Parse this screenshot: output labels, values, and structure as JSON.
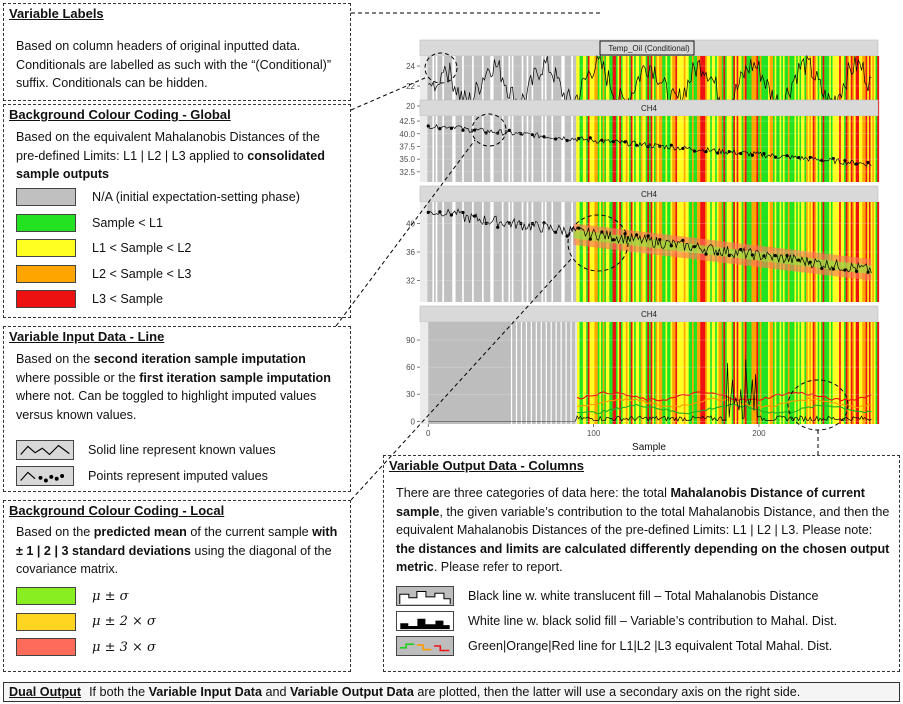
{
  "variable_labels": {
    "title": "Variable Labels",
    "text": "Based on column headers of original inputted data. Conditionals are labelled as such with the “(Conditional)” suffix. Conditionals can be hidden."
  },
  "bg_global": {
    "title": "Background Colour Coding - Global",
    "intro": "Based on the equivalent Mahalanobis Distances of the pre-defined Limits: L1 | L2 | L3 applied to",
    "intro_bold": "consolidated sample outputs",
    "items": [
      {
        "label": "N/A (initial expectation-setting phase)",
        "color": "#c0c0c0"
      },
      {
        "label": "Sample < L1",
        "color": "#22e222"
      },
      {
        "label": "L1 < Sample < L2",
        "color": "#ffff22"
      },
      {
        "label": "L2 < Sample < L3",
        "color": "#ffa500"
      },
      {
        "label": "L3 < Sample",
        "color": "#ee1111"
      }
    ]
  },
  "input_line": {
    "title": "Variable Input Data - Line",
    "t1": "Based on the ",
    "b1": "second iteration sample imputation",
    "t2": " where possible or the ",
    "b2": "first iteration sample imputation",
    "t3": " where not. Can be toggled to highlight imputed values versus known values.",
    "items": [
      {
        "label": "Solid line represent known values",
        "icon": "solid-line-icon"
      },
      {
        "label": "Points represent imputed values",
        "icon": "points-line-icon"
      }
    ]
  },
  "bg_local": {
    "title": "Background Colour Coding - Local",
    "t1": "Based on the ",
    "b1": "predicted mean",
    "t2": " of the current sample ",
    "b2": "with ± 1 | 2 | 3 standard deviations",
    "t3": " using the diagonal of the covariance matrix.",
    "items": [
      {
        "label": "μ ± σ",
        "color": "#88ee22"
      },
      {
        "label": "μ ± 2 × σ",
        "color": "#ffd522"
      },
      {
        "label": "μ ± 3 × σ",
        "color": "#ff6b5a"
      }
    ]
  },
  "output_cols": {
    "title": "Variable Output Data - Columns",
    "t1": "There are three categories of data here: the total ",
    "b1": "Mahalanobis Distance of current sample",
    "t2": ", the given variable’s contribution to the total Mahalanobis Distance, and then the equivalent Mahalanobis Distances of the pre-defined Limits: L1 | L2 | L3. Please note: ",
    "b2": "the distances and limits are calculated differently depending on the chosen output metric",
    "t3": ". Please refer to report.",
    "items": [
      {
        "label": "Black line w. white translucent fill – Total Mahalanobis Distance",
        "icon": "white-fill-columns-icon"
      },
      {
        "label": "White line w. black solid fill – Variable’s contribution to Mahal. Dist.",
        "icon": "black-fill-columns-icon"
      },
      {
        "label": "Green|Orange|Red line for L1|L2 |L3 equivalent Total Mahal. Dist.",
        "icon": "limit-lines-icon"
      }
    ]
  },
  "dual_output": {
    "title": "Dual Output",
    "t1": "If both the ",
    "b1": "Variable Input Data",
    "t2": " and ",
    "b2": "Variable Output Data",
    "t3": " are plotted, then the latter will use a secondary axis on the right side."
  },
  "chart_data": [
    {
      "type": "line",
      "title": "Temp_Oil (Conditional)",
      "yticks": [
        20,
        22,
        24
      ],
      "ylim": [
        19,
        25
      ],
      "xlim": [
        -5,
        272
      ],
      "grid": true
    },
    {
      "type": "line",
      "title": "CH4",
      "yticks": [
        32.5,
        35.0,
        37.5,
        40.0,
        42.5
      ],
      "ylim": [
        30.5,
        43.5
      ],
      "xlim": [
        -5,
        272
      ],
      "grid": true
    },
    {
      "type": "line",
      "title": "CH4",
      "yticks": [
        32,
        36,
        40
      ],
      "ylim": [
        29,
        43
      ],
      "xlim": [
        -5,
        272
      ],
      "grid": true
    },
    {
      "type": "bar",
      "title": "CH4",
      "yticks": [
        0,
        30,
        60,
        90
      ],
      "ylim": [
        -3,
        110
      ],
      "xlim": [
        -5,
        272
      ],
      "xticks": [
        0,
        100,
        200
      ],
      "xlabel": "Sample",
      "grid": true
    }
  ],
  "colors": {
    "na": "#c0c0c0",
    "green": "#22e222",
    "yellow": "#ffff22",
    "orange": "#ffa500",
    "red": "#ee1111",
    "strip": "#d9d9d9"
  }
}
